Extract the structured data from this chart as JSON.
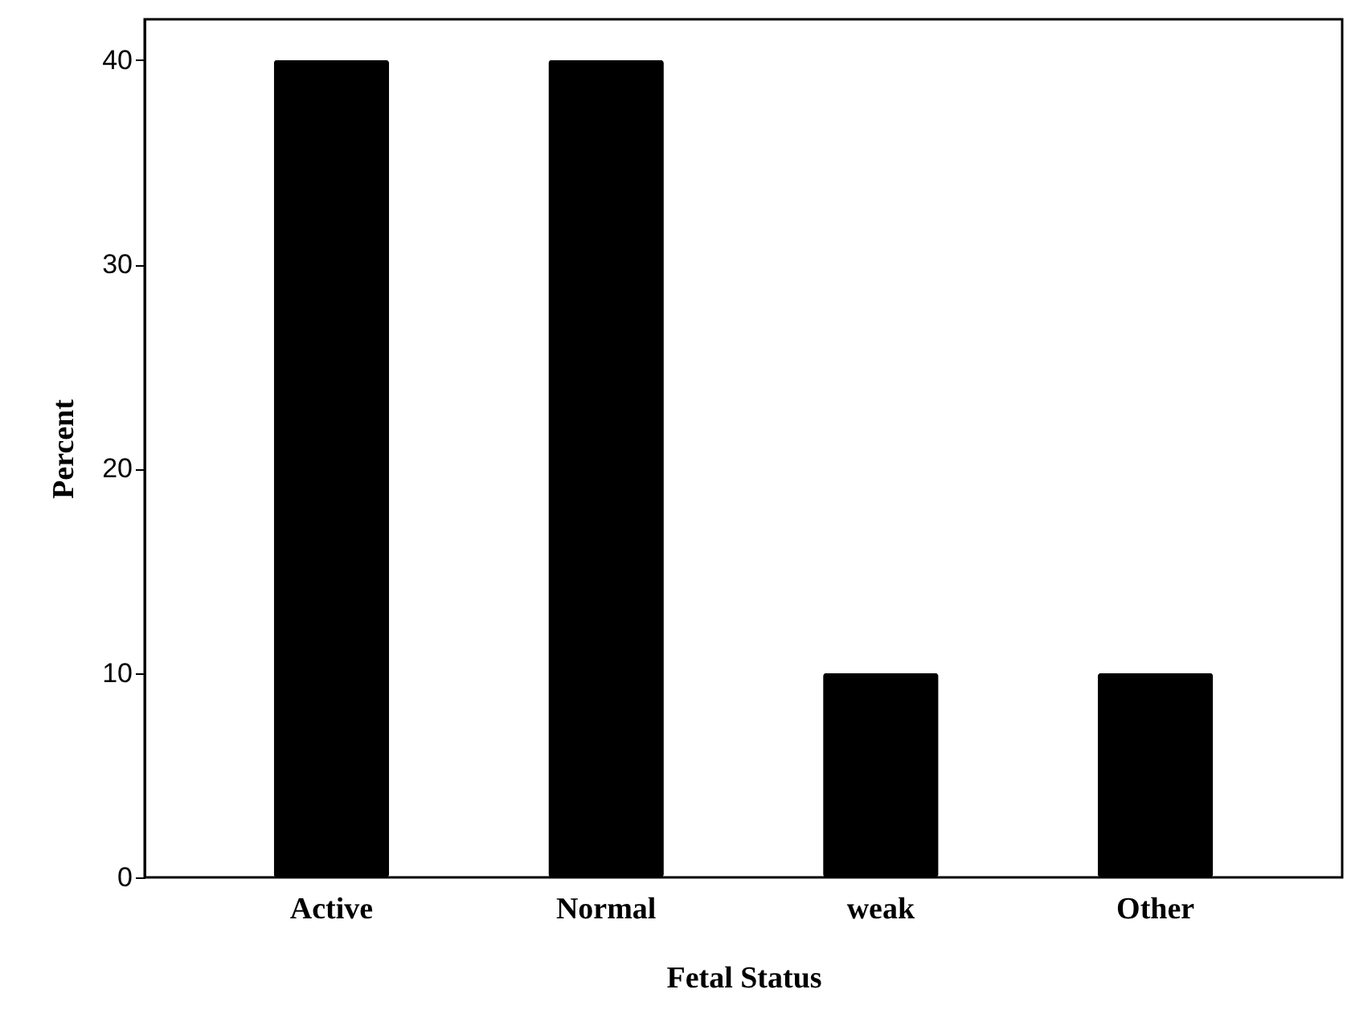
{
  "chart_data": {
    "type": "bar",
    "xlabel": "Fetal Status",
    "ylabel": "Percent",
    "categories": [
      "Active",
      "Normal",
      "weak",
      "Other"
    ],
    "values": [
      40,
      40,
      10,
      10
    ],
    "color": "#000000",
    "ylim": [
      0,
      42
    ],
    "yticks": [
      0,
      10,
      20,
      30,
      40
    ],
    "grid": false
  }
}
